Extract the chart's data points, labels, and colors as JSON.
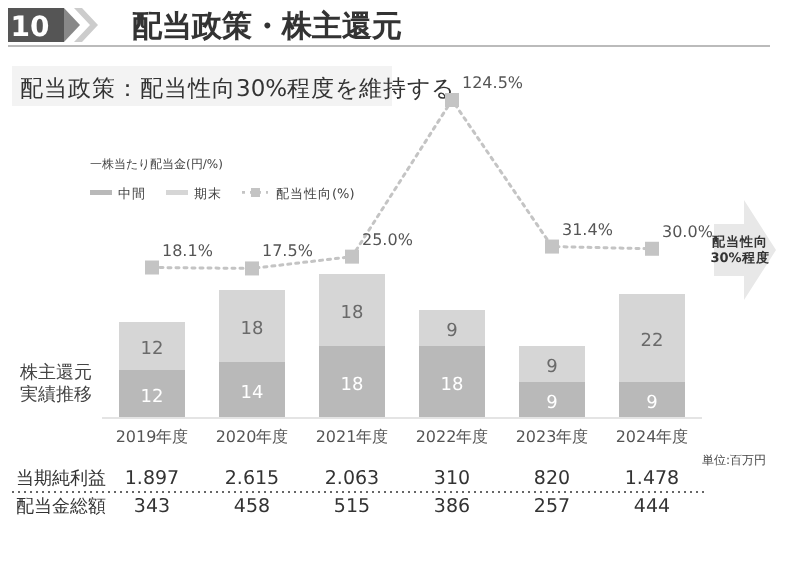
{
  "chart_data": [
    {
      "type": "bar",
      "stacked": true,
      "legend_title": "一株当たり配当金(円/%)",
      "legend": "top left",
      "data_labels": true,
      "categories": [
        "2019年度",
        "2020年度",
        "2021年度",
        "2022年度",
        "2023年度",
        "2024年度"
      ],
      "series": [
        {
          "name": "中間",
          "color": "#b9b9b9",
          "values": [
            12,
            14,
            18,
            18,
            9,
            9
          ]
        },
        {
          "name": "期末",
          "color": "#d6d6d6",
          "values": [
            12,
            18,
            18,
            9,
            9,
            22
          ]
        }
      ],
      "annotations": [
        "10",
        "株主還元",
        "実績推移",
        "配当性向",
        "30%程度",
        "単位:百万円",
        "当期純利益",
        "1.897",
        "2.615",
        "2.063",
        "310",
        "820",
        "1.478",
        "配当金総額",
        "343",
        "458",
        "515",
        "386",
        "257",
        "444"
      ]
    },
    {
      "type": "line",
      "title": "配当政策・株主還元",
      "subtitle": "配当政策：配当性向30%程度を維持する",
      "legend": "left",
      "marker": "square",
      "line_style": "dotted",
      "categories": [
        null,
        null,
        null,
        null,
        null,
        null
      ],
      "series": [
        {
          "name": "配当性向(%)",
          "color": "#c4c4c4",
          "values": [
            18.1,
            17.5,
            25.0,
            124.5,
            31.4,
            30.0
          ],
          "value_labels": [
            "18.1%",
            "17.5%",
            "25.0%",
            "124.5%",
            "31.4%",
            "30.0%"
          ]
        }
      ]
    }
  ]
}
